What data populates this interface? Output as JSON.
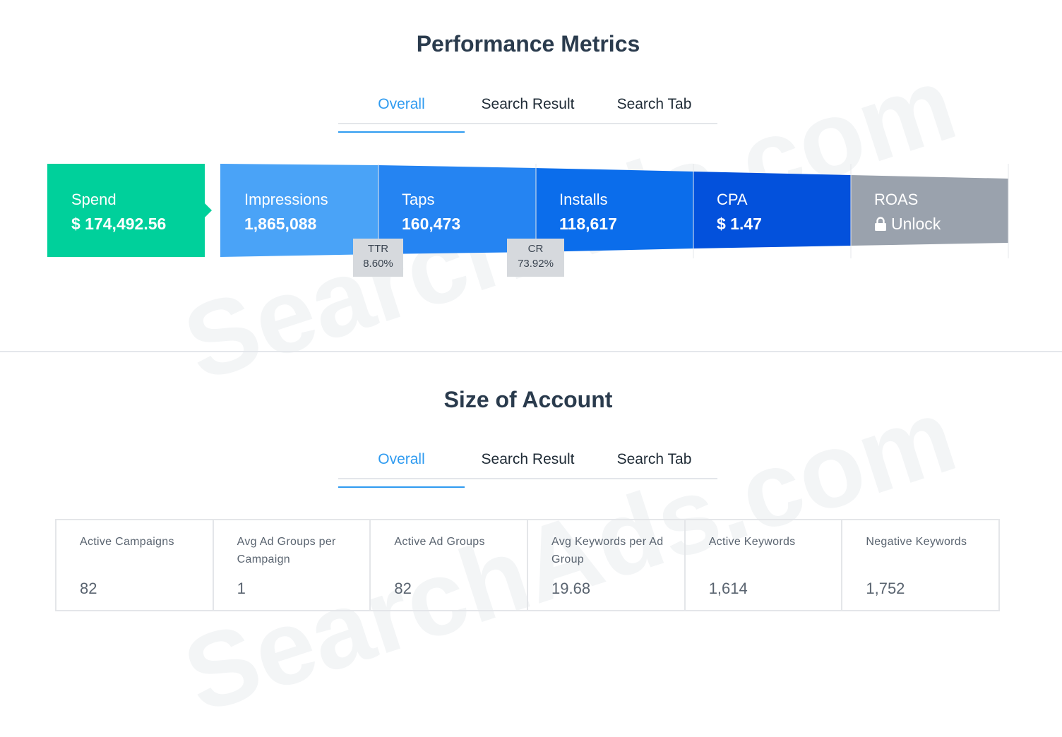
{
  "watermark": "SearchAds.com",
  "performance": {
    "title": "Performance Metrics",
    "tabs": [
      {
        "label": "Overall",
        "active": true
      },
      {
        "label": "Search Result",
        "active": false
      },
      {
        "label": "Search Tab",
        "active": false
      }
    ],
    "metrics": [
      {
        "label": "Spend",
        "value": "$ 174,492.56",
        "color": "#00d09b"
      },
      {
        "label": "Impressions",
        "value": "1,865,088",
        "color": "#4aa3f7"
      },
      {
        "label": "Taps",
        "value": "160,473",
        "color": "#2584f2"
      },
      {
        "label": "Installs",
        "value": "118,617",
        "color": "#0b6deb"
      },
      {
        "label": "CPA",
        "value": "$ 1.47",
        "color": "#0351dc"
      },
      {
        "label": "ROAS",
        "value": "Unlock",
        "color": "#9aa2ad",
        "icon": "lock-icon"
      }
    ],
    "rates": [
      {
        "label": "TTR",
        "value": "8.60%"
      },
      {
        "label": "CR",
        "value": "73.92%"
      }
    ]
  },
  "account": {
    "title": "Size of Account",
    "tabs": [
      {
        "label": "Overall",
        "active": true
      },
      {
        "label": "Search Result",
        "active": false
      },
      {
        "label": "Search Tab",
        "active": false
      }
    ],
    "stats": [
      {
        "label": "Active Campaigns",
        "value": "82"
      },
      {
        "label": "Avg Ad Groups per Campaign",
        "value": "1"
      },
      {
        "label": "Active Ad Groups",
        "value": "82"
      },
      {
        "label": "Avg Keywords per Ad Group",
        "value": "19.68"
      },
      {
        "label": "Active Keywords",
        "value": "1,614"
      },
      {
        "label": "Negative Keywords",
        "value": "1,752"
      }
    ]
  }
}
